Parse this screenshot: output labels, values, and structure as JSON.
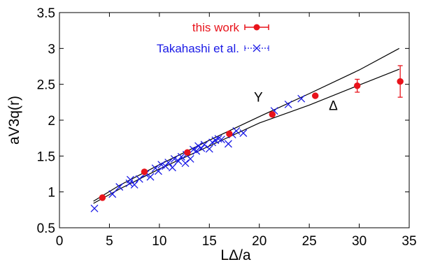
{
  "chart_data": {
    "type": "scatter",
    "xlabel": "LΔ/a",
    "ylabel": "aV3q(r)",
    "xlim": [
      0,
      35
    ],
    "ylim": [
      0.5,
      3.5
    ],
    "xticks": [
      "0",
      "5",
      "10",
      "15",
      "20",
      "25",
      "30",
      "35"
    ],
    "yticks": [
      "0.5",
      "1",
      "1.5",
      "2",
      "2.5",
      "3",
      "3.5"
    ],
    "grid": false,
    "legend_position": "top-right",
    "colors": {
      "this_work": "#e8131b",
      "takahashi": "#1a1ae6",
      "curves": "#000000"
    },
    "series": [
      {
        "name": "this work",
        "marker": "filled-circle-with-errorbar",
        "points": [
          {
            "x": 4.3,
            "y": 0.92,
            "err": 0.0
          },
          {
            "x": 8.5,
            "y": 1.28,
            "err": 0.0
          },
          {
            "x": 12.8,
            "y": 1.55,
            "err": 0.0
          },
          {
            "x": 17.0,
            "y": 1.81,
            "err": 0.0
          },
          {
            "x": 21.3,
            "y": 2.08,
            "err": 0.0
          },
          {
            "x": 25.6,
            "y": 2.34,
            "err": 0.0
          },
          {
            "x": 29.8,
            "y": 2.48,
            "err": 0.09
          },
          {
            "x": 34.1,
            "y": 2.54,
            "err": 0.22
          }
        ]
      },
      {
        "name": "Takahashi et al.",
        "marker": "x-cross",
        "points": [
          {
            "x": 3.5,
            "y": 0.77
          },
          {
            "x": 5.3,
            "y": 0.97
          },
          {
            "x": 6.0,
            "y": 1.07
          },
          {
            "x": 7.0,
            "y": 1.12
          },
          {
            "x": 7.1,
            "y": 1.17
          },
          {
            "x": 7.5,
            "y": 1.1
          },
          {
            "x": 8.0,
            "y": 1.18
          },
          {
            "x": 8.6,
            "y": 1.25
          },
          {
            "x": 9.1,
            "y": 1.21
          },
          {
            "x": 9.6,
            "y": 1.33
          },
          {
            "x": 9.9,
            "y": 1.29
          },
          {
            "x": 10.2,
            "y": 1.38
          },
          {
            "x": 10.6,
            "y": 1.36
          },
          {
            "x": 10.9,
            "y": 1.41
          },
          {
            "x": 11.3,
            "y": 1.34
          },
          {
            "x": 11.5,
            "y": 1.46
          },
          {
            "x": 11.9,
            "y": 1.43
          },
          {
            "x": 12.2,
            "y": 1.49
          },
          {
            "x": 12.6,
            "y": 1.4
          },
          {
            "x": 12.7,
            "y": 1.52
          },
          {
            "x": 13.1,
            "y": 1.46
          },
          {
            "x": 13.4,
            "y": 1.59
          },
          {
            "x": 13.7,
            "y": 1.57
          },
          {
            "x": 13.9,
            "y": 1.64
          },
          {
            "x": 14.2,
            "y": 1.61
          },
          {
            "x": 14.5,
            "y": 1.66
          },
          {
            "x": 15.0,
            "y": 1.6
          },
          {
            "x": 15.3,
            "y": 1.69
          },
          {
            "x": 15.6,
            "y": 1.72
          },
          {
            "x": 15.9,
            "y": 1.74
          },
          {
            "x": 16.2,
            "y": 1.73
          },
          {
            "x": 16.9,
            "y": 1.67
          },
          {
            "x": 17.3,
            "y": 1.8
          },
          {
            "x": 17.7,
            "y": 1.85
          },
          {
            "x": 18.4,
            "y": 1.82
          },
          {
            "x": 21.5,
            "y": 2.13
          },
          {
            "x": 22.9,
            "y": 2.22
          },
          {
            "x": 24.2,
            "y": 2.3
          }
        ]
      }
    ],
    "curves": [
      {
        "label": "Y",
        "points": [
          [
            3.4,
            0.87
          ],
          [
            6,
            1.09
          ],
          [
            10,
            1.38
          ],
          [
            15,
            1.72
          ],
          [
            20,
            2.05
          ],
          [
            25,
            2.37
          ],
          [
            30,
            2.7
          ],
          [
            34.0,
            3.0
          ]
        ]
      },
      {
        "label": "Δ",
        "points": [
          [
            3.4,
            0.84
          ],
          [
            6,
            1.04
          ],
          [
            10,
            1.32
          ],
          [
            15,
            1.64
          ],
          [
            20,
            1.96
          ],
          [
            25,
            2.21
          ],
          [
            30,
            2.49
          ],
          [
            34.0,
            2.71
          ]
        ]
      }
    ],
    "curve_label_positions": [
      {
        "label": "Y",
        "x": 19.9,
        "y": 2.26
      },
      {
        "label": "Δ",
        "x": 27.4,
        "y": 2.14
      }
    ]
  }
}
